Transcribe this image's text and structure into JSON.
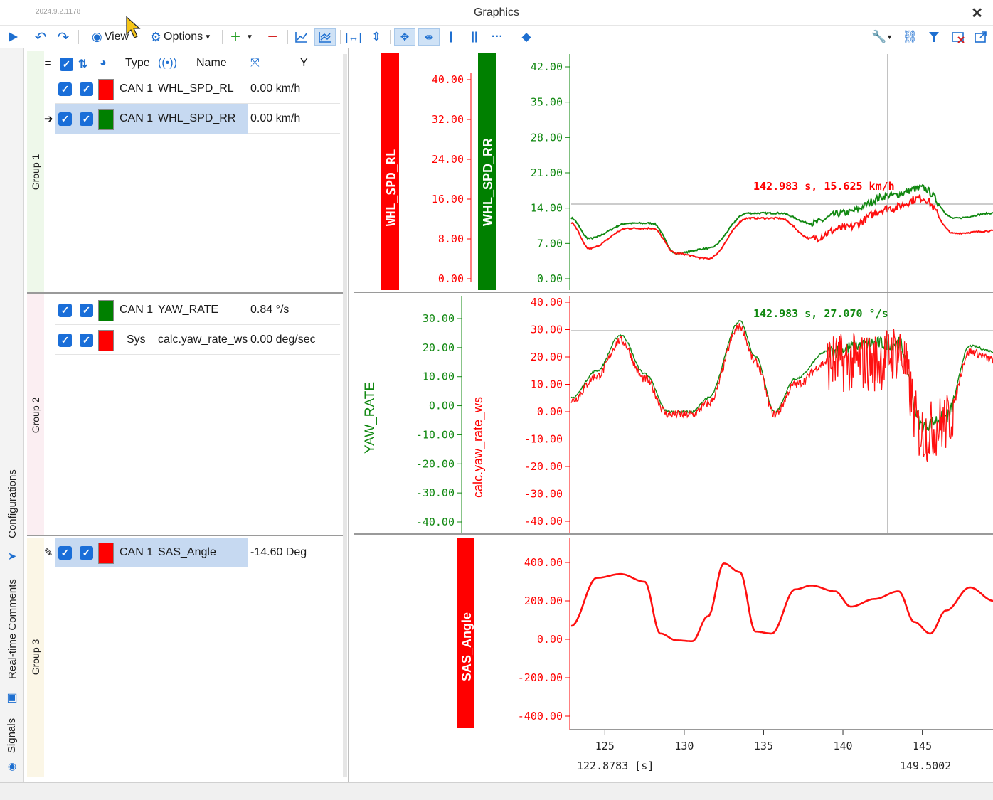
{
  "window": {
    "title": "Graphics",
    "version": "2024.9.2.1178"
  },
  "toolbar": {
    "view_label": "View",
    "options_label": "Options"
  },
  "sidetabs": {
    "configurations": "Configurations",
    "comments": "Real-time Comments",
    "signals": "Signals"
  },
  "columns": {
    "type": "Type",
    "name": "Name",
    "y": "Y"
  },
  "groups": [
    {
      "label": "Group 1",
      "signals": [
        {
          "type": "CAN 1",
          "name": "WHL_SPD_RL",
          "value": "0.00 km/h",
          "color": "#ff0000"
        },
        {
          "type": "CAN 1",
          "name": "WHL_SPD_RR",
          "value": "0.00 km/h",
          "color": "#008000"
        }
      ]
    },
    {
      "label": "Group 2",
      "signals": [
        {
          "type": "CAN 1",
          "name": "YAW_RATE",
          "value": "0.84 °/s",
          "color": "#008000"
        },
        {
          "type": "Sys",
          "name": "calc.yaw_rate_ws",
          "value": "0.00 deg/sec",
          "color": "#ff0000"
        }
      ]
    },
    {
      "label": "Group 3",
      "signals": [
        {
          "type": "CAN 1",
          "name": "SAS_Angle",
          "value": "-14.60 Deg",
          "color": "#ff0000"
        }
      ]
    }
  ],
  "plots": {
    "p1": {
      "axis_left_label": "WHL_SPD_RL",
      "axis_left_ticks": [
        "40.00",
        "32.00",
        "24.00",
        "16.00",
        "8.00",
        "0.00"
      ],
      "axis_right_label": "WHL_SPD_RR",
      "axis_right_ticks": [
        "42.00",
        "35.00",
        "28.00",
        "21.00",
        "14.00",
        "7.00",
        "0.00"
      ],
      "cursor_label": "142.983 s, 15.625 km/h"
    },
    "p2": {
      "axis_a_label": "YAW_RATE",
      "axis_a_ticks": [
        "30.00",
        "20.00",
        "10.00",
        "0.00",
        "-10.00",
        "-20.00",
        "-30.00",
        "-40.00"
      ],
      "axis_b_label": "calc.yaw_rate_ws",
      "axis_b_ticks": [
        "40.00",
        "30.00",
        "20.00",
        "10.00",
        "0.00",
        "-10.00",
        "-20.00",
        "-30.00",
        "-40.00"
      ],
      "cursor_label": "142.983 s, 27.070 °/s"
    },
    "p3": {
      "axis_label": "SAS_Angle",
      "axis_ticks": [
        "400.00",
        "200.00",
        "0.00",
        "-200.00",
        "-400.00"
      ]
    },
    "x_ticks": [
      "125",
      "130",
      "135",
      "140",
      "145"
    ],
    "x_start_label": "122.8783 [s]",
    "x_end_label": "149.5002"
  }
}
